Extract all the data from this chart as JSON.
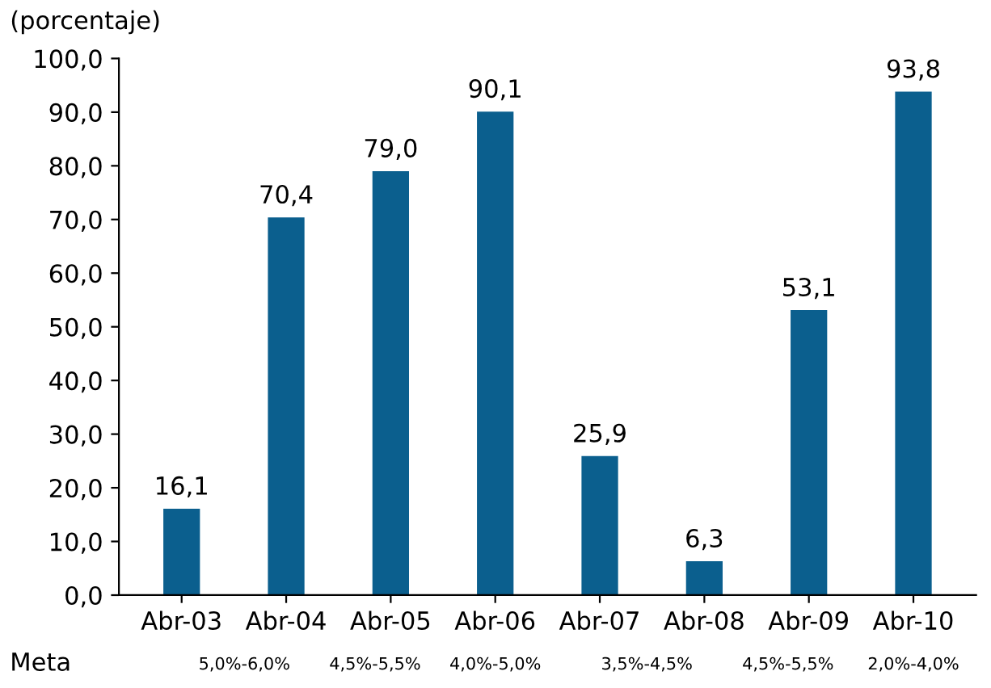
{
  "chart_data": {
    "type": "bar",
    "ylabel": "(porcentaje)",
    "categories": [
      "Abr-03",
      "Abr-04",
      "Abr-05",
      "Abr-06",
      "Abr-07",
      "Abr-08",
      "Abr-09",
      "Abr-10"
    ],
    "values": [
      16.1,
      70.4,
      79.0,
      90.1,
      25.9,
      6.3,
      53.1,
      93.8
    ],
    "value_labels": [
      "16,1",
      "70,4",
      "79,0",
      "90,1",
      "25,9",
      "6,3",
      "53,1",
      "93,8"
    ],
    "color": "#0b5f8e",
    "ylim": [
      0,
      100
    ],
    "yticks": [
      {
        "value": 0,
        "label": "0,0"
      },
      {
        "value": 10,
        "label": "10,0"
      },
      {
        "value": 20,
        "label": "20,0"
      },
      {
        "value": 30,
        "label": "30,0"
      },
      {
        "value": 40,
        "label": "40,0"
      },
      {
        "value": 50,
        "label": "50,0"
      },
      {
        "value": 60,
        "label": "60,0"
      },
      {
        "value": 70,
        "label": "70,0"
      },
      {
        "value": 80,
        "label": "80,0"
      },
      {
        "value": 90,
        "label": "90,0"
      },
      {
        "value": 100,
        "label": "100,0"
      }
    ],
    "grid": false,
    "annotations": [
      "Meta",
      "5,0%-6,0%",
      "4,5%-5,5%",
      "4,0%-5,0%",
      "3,5%-4,5%",
      "4,5%-5,5%",
      "2,0%-4,0%"
    ]
  }
}
